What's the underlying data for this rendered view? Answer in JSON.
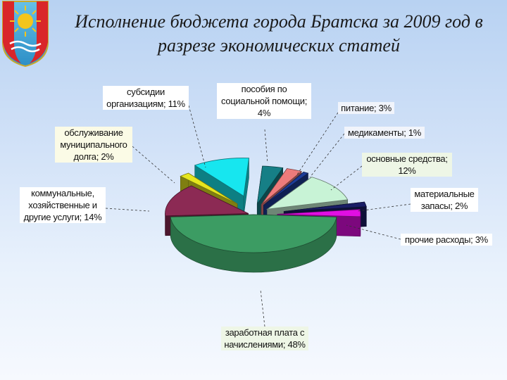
{
  "title": "Исполнение бюджета города Братска за 2009 год в разрезе экономических статей",
  "colors": {
    "salary": "#3c9c63",
    "utilities": "#8c2a54",
    "debt": "#e6e61e",
    "subsidies": "#17e6ef",
    "benefits": "#167f86",
    "food": "#ee7b7b",
    "medicine": "#1c3b97",
    "fixed_assets": "#c8f3d6",
    "materials": "#1a1d66",
    "other": "#e10fe3"
  },
  "chart_data": {
    "type": "pie",
    "slices": [
      {
        "label": "заработная плата с начислениями; 48%",
        "value": 48,
        "color_key": "salary"
      },
      {
        "label": "коммунальные, хозяйственные и другие услуги; 14%",
        "value": 14,
        "color_key": "utilities"
      },
      {
        "label": "обслуживание муниципального долга; 2%",
        "value": 2,
        "color_key": "debt"
      },
      {
        "label": "субсидии организациям; 11%",
        "value": 11,
        "color_key": "subsidies"
      },
      {
        "label": "пособия по социальной помощи; 4%",
        "value": 4,
        "color_key": "benefits"
      },
      {
        "label": "питание; 3%",
        "value": 3,
        "color_key": "food"
      },
      {
        "label": "медикаменты; 1%",
        "value": 1,
        "color_key": "medicine"
      },
      {
        "label": "основные средства; 12%",
        "value": 12,
        "color_key": "fixed_assets"
      },
      {
        "label": "материальные запасы; 2%",
        "value": 2,
        "color_key": "materials"
      },
      {
        "label": "прочие расходы; 3%",
        "value": 3,
        "color_key": "other"
      }
    ]
  }
}
